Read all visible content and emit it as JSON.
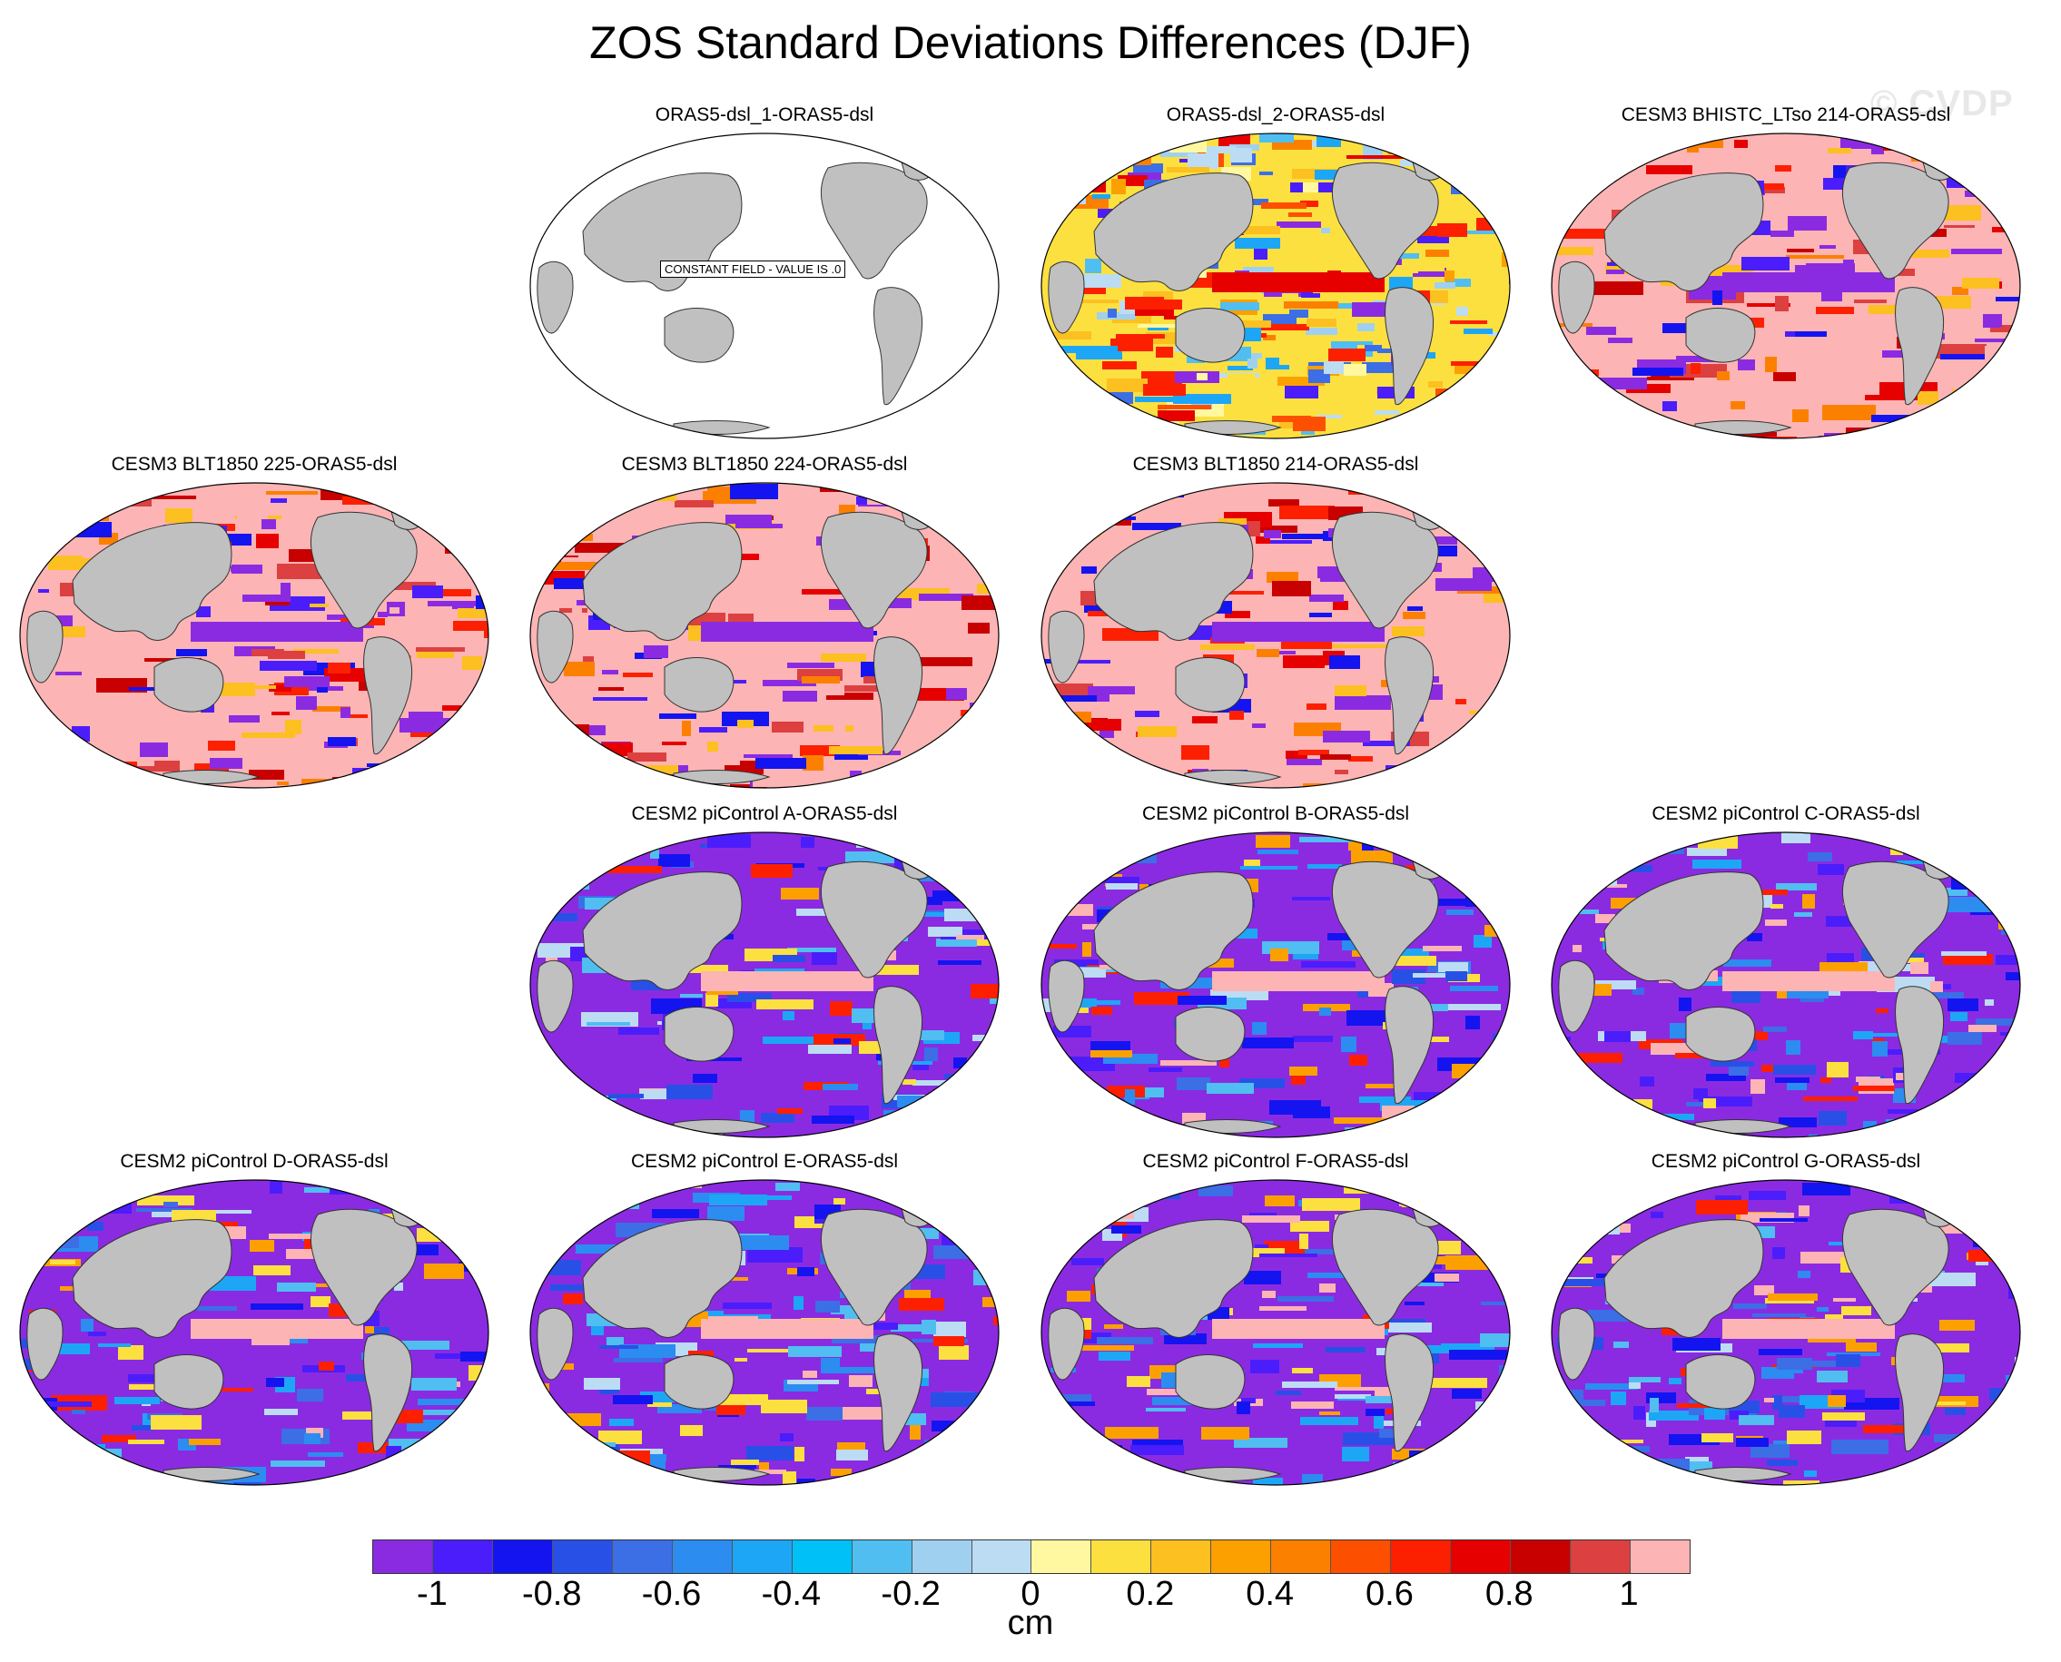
{
  "title": "ZOS Standard Deviations Differences (DJF)",
  "watermark": "© CVDP",
  "panels": [
    {
      "row": 0,
      "col": 1,
      "title": "ORAS5-dsl_1-ORAS5-dsl",
      "style": "constant",
      "annotation": "CONSTANT FIELD - VALUE IS .0"
    },
    {
      "row": 0,
      "col": 2,
      "title": "ORAS5-dsl_2-ORAS5-dsl",
      "style": "mixed"
    },
    {
      "row": 0,
      "col": 3,
      "title": "CESM3 BHISTC_LTso 214-ORAS5-dsl",
      "style": "pink"
    },
    {
      "row": 1,
      "col": 0,
      "title": "CESM3 BLT1850 225-ORAS5-dsl",
      "style": "pink"
    },
    {
      "row": 1,
      "col": 1,
      "title": "CESM3 BLT1850 224-ORAS5-dsl",
      "style": "pink"
    },
    {
      "row": 1,
      "col": 2,
      "title": "CESM3 BLT1850 214-ORAS5-dsl",
      "style": "pink"
    },
    {
      "row": 2,
      "col": 1,
      "title": "CESM2 piControl A-ORAS5-dsl",
      "style": "purple"
    },
    {
      "row": 2,
      "col": 2,
      "title": "CESM2 piControl B-ORAS5-dsl",
      "style": "purple"
    },
    {
      "row": 2,
      "col": 3,
      "title": "CESM2 piControl C-ORAS5-dsl",
      "style": "purple"
    },
    {
      "row": 3,
      "col": 0,
      "title": "CESM2 piControl D-ORAS5-dsl",
      "style": "purple"
    },
    {
      "row": 3,
      "col": 1,
      "title": "CESM2 piControl E-ORAS5-dsl",
      "style": "purple"
    },
    {
      "row": 3,
      "col": 2,
      "title": "CESM2 piControl F-ORAS5-dsl",
      "style": "purple"
    },
    {
      "row": 3,
      "col": 3,
      "title": "CESM2 piControl G-ORAS5-dsl",
      "style": "purple"
    }
  ],
  "colors": {
    "land": "#c0c0c0",
    "pink": "#fcb4b4",
    "scale": [
      "#8a2be2",
      "#4b1dfb",
      "#1414f0",
      "#2850e6",
      "#3c6ee6",
      "#2c8cf0",
      "#1ea6f6",
      "#00c0f8",
      "#50bef0",
      "#a0d0f0",
      "#bcdcf4",
      "#fff8a0",
      "#fce040",
      "#fcc020",
      "#fca000",
      "#fc8000",
      "#fc5000",
      "#fc2000",
      "#e60000",
      "#c80000",
      "#dc4040",
      "#fcb4b4"
    ]
  },
  "colorbar": {
    "tick_labels": [
      {
        "label": "-1",
        "index": 1
      },
      {
        "label": "-0.8",
        "index": 3
      },
      {
        "label": "-0.6",
        "index": 5
      },
      {
        "label": "-0.4",
        "index": 7
      },
      {
        "label": "-0.2",
        "index": 9
      },
      {
        "label": "0",
        "index": 11
      },
      {
        "label": "0.2",
        "index": 13
      },
      {
        "label": "0.4",
        "index": 15
      },
      {
        "label": "0.6",
        "index": 17
      },
      {
        "label": "0.8",
        "index": 19
      },
      {
        "label": "1",
        "index": 21
      }
    ],
    "units": "cm"
  }
}
